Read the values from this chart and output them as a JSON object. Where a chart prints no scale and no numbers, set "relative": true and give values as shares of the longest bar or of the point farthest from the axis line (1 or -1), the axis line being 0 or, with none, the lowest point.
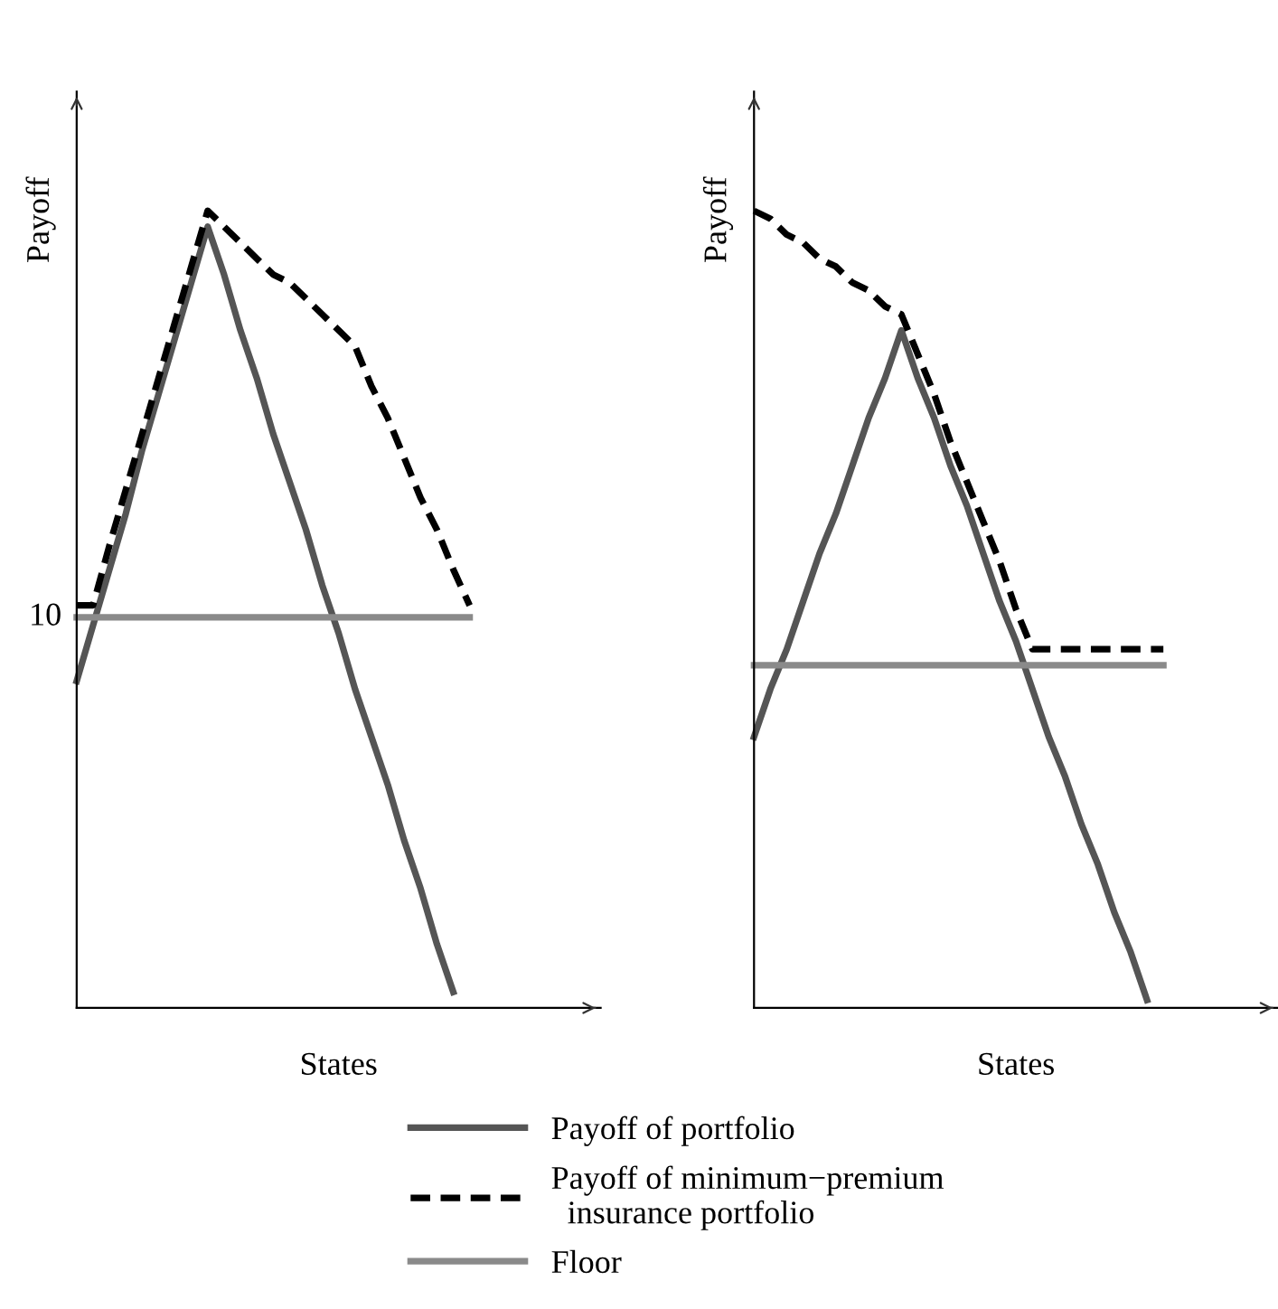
{
  "chart_data": [
    {
      "type": "line",
      "relative": true,
      "xlabel": "States",
      "ylabel": "Payoff",
      "legend": "bottom",
      "categories": [
        null,
        null,
        null,
        null,
        null,
        null,
        null,
        null,
        null,
        null,
        null,
        null,
        null,
        null,
        null,
        null,
        null,
        null,
        null,
        null,
        null,
        null,
        null,
        null,
        null,
        null
      ],
      "annotations": [
        "10"
      ],
      "series": [
        {
          "name": "Payoff of portfolio",
          "color": "#555555",
          "line_style": "solid",
          "values": [
            0.41,
            0.48,
            0.55,
            0.62,
            0.7,
            0.77,
            0.84,
            0.91,
            0.98,
            0.92,
            0.85,
            0.79,
            0.72,
            0.66,
            0.6,
            0.53,
            0.47,
            0.4,
            0.34,
            0.28,
            0.21,
            0.15,
            0.08,
            0.02,
            null,
            null
          ]
        },
        {
          "name": "Payoff of minimum−premium\n  insurance portfolio",
          "color": "#000000",
          "line_style": "dashed",
          "values": [
            0.505,
            0.505,
            0.58,
            0.65,
            0.72,
            0.79,
            0.86,
            0.93,
            1.0,
            0.98,
            0.96,
            0.94,
            0.92,
            0.91,
            0.89,
            0.87,
            0.85,
            0.83,
            0.78,
            0.74,
            0.69,
            0.64,
            0.6,
            0.55,
            0.505,
            null
          ]
        },
        {
          "name": "Floor",
          "color": "#8a8a8a",
          "line_style": "solid",
          "values": [
            0.49,
            0.49,
            0.49,
            0.49,
            0.49,
            0.49,
            0.49,
            0.49,
            0.49,
            0.49,
            0.49,
            0.49,
            0.49,
            0.49,
            0.49,
            0.49,
            0.49,
            0.49,
            0.49,
            0.49,
            0.49,
            0.49,
            0.49,
            0.49,
            0.49,
            null
          ]
        }
      ]
    },
    {
      "type": "line",
      "relative": true,
      "xlabel": "States",
      "ylabel": "Payoff",
      "categories": [
        null,
        null,
        null,
        null,
        null,
        null,
        null,
        null,
        null,
        null,
        null,
        null,
        null,
        null,
        null,
        null,
        null,
        null,
        null,
        null,
        null,
        null,
        null,
        null,
        null,
        null
      ],
      "series": [
        {
          "color": "#555555",
          "line_style": "solid",
          "values": [
            0.34,
            0.4,
            0.45,
            0.51,
            0.57,
            0.62,
            0.68,
            0.74,
            0.79,
            0.85,
            0.79,
            0.74,
            0.68,
            0.63,
            0.57,
            0.51,
            0.46,
            0.4,
            0.34,
            0.29,
            0.23,
            0.18,
            0.12,
            0.07,
            0.01,
            null
          ]
        },
        {
          "color": "#000000",
          "line_style": "dashed",
          "values": [
            1.0,
            0.99,
            0.97,
            0.96,
            0.94,
            0.93,
            0.91,
            0.9,
            0.88,
            0.87,
            0.82,
            0.77,
            0.71,
            0.66,
            0.61,
            0.56,
            0.5,
            0.45,
            0.45,
            0.45,
            0.45,
            0.45,
            0.45,
            0.45,
            0.45,
            0.45
          ]
        },
        {
          "color": "#8a8a8a",
          "line_style": "solid",
          "values": [
            0.43,
            0.43,
            0.43,
            0.43,
            0.43,
            0.43,
            0.43,
            0.43,
            0.43,
            0.43,
            0.43,
            0.43,
            0.43,
            0.43,
            0.43,
            0.43,
            0.43,
            0.43,
            0.43,
            0.43,
            0.43,
            0.43,
            0.43,
            0.43,
            0.43,
            0.43
          ]
        }
      ]
    }
  ]
}
